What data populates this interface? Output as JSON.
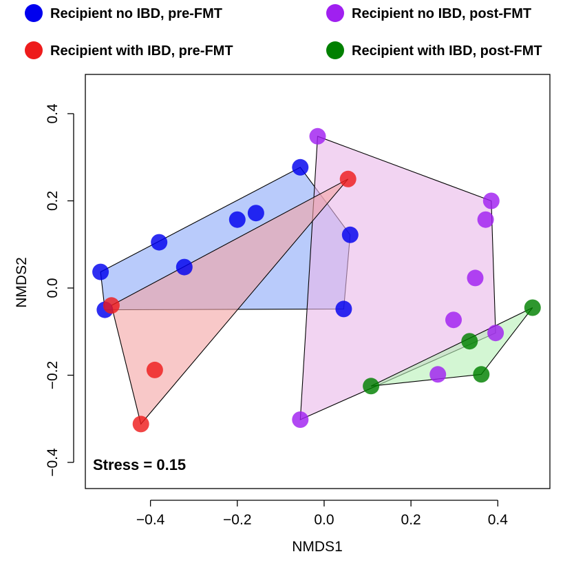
{
  "chart_data": {
    "type": "scatter",
    "xlabel": "NMDS1",
    "ylabel": "NMDS2",
    "xlim": [
      -0.55,
      0.52
    ],
    "ylim": [
      -0.46,
      0.49
    ],
    "x_ticks": [
      -0.4,
      -0.2,
      0.0,
      0.2,
      0.4
    ],
    "x_tick_labels": [
      "−0.4",
      "−0.2",
      "0.0",
      "0.2",
      "0.4"
    ],
    "y_ticks": [
      -0.4,
      -0.2,
      0.0,
      0.2,
      0.4
    ],
    "y_tick_labels": [
      "−0.4",
      "−0.2",
      "0.0",
      "0.2",
      "0.4"
    ],
    "grid": false,
    "legend_position": "top, outside plot, two columns",
    "annotation": "Stress = 0.15",
    "series": [
      {
        "name": "Recipient no IBD, pre-FMT",
        "color": "#0000ee",
        "fill": "#8aa8f8",
        "points": [
          [
            -0.515,
            0.037
          ],
          [
            -0.505,
            -0.05
          ],
          [
            -0.38,
            0.105
          ],
          [
            -0.322,
            0.048
          ],
          [
            -0.2,
            0.157
          ],
          [
            -0.157,
            0.172
          ],
          [
            -0.055,
            0.277
          ],
          [
            0.06,
            0.122
          ],
          [
            0.045,
            -0.048
          ]
        ],
        "hull": [
          [
            -0.515,
            0.037
          ],
          [
            -0.055,
            0.277
          ],
          [
            0.06,
            0.122
          ],
          [
            0.045,
            -0.048
          ],
          [
            -0.505,
            -0.05
          ]
        ]
      },
      {
        "name": "Recipient no IBD, post-FMT",
        "color": "#a020f0",
        "fill": "#e9b8e9",
        "points": [
          [
            -0.015,
            0.348
          ],
          [
            0.385,
            0.2
          ],
          [
            0.372,
            0.157
          ],
          [
            0.348,
            0.023
          ],
          [
            0.298,
            -0.073
          ],
          [
            0.395,
            -0.103
          ],
          [
            0.262,
            -0.198
          ],
          [
            -0.055,
            -0.302
          ]
        ],
        "hull": [
          [
            -0.015,
            0.348
          ],
          [
            0.385,
            0.2
          ],
          [
            0.395,
            -0.103
          ],
          [
            -0.055,
            -0.302
          ]
        ]
      },
      {
        "name": "Recipient with IBD, pre-FMT",
        "color": "#ee1c1c",
        "fill": "#f4a4a4",
        "points": [
          [
            0.055,
            0.25
          ],
          [
            -0.49,
            -0.04
          ],
          [
            -0.39,
            -0.188
          ],
          [
            -0.422,
            -0.312
          ]
        ],
        "hull": [
          [
            0.055,
            0.25
          ],
          [
            -0.49,
            -0.04
          ],
          [
            -0.422,
            -0.312
          ]
        ]
      },
      {
        "name": "Recipient with IBD, post-FMT",
        "color": "#008000",
        "fill": "#b6f0b6",
        "points": [
          [
            0.48,
            -0.045
          ],
          [
            0.335,
            -0.122
          ],
          [
            0.362,
            -0.198
          ],
          [
            0.108,
            -0.225
          ]
        ],
        "hull": [
          [
            0.48,
            -0.045
          ],
          [
            0.362,
            -0.198
          ],
          [
            0.108,
            -0.225
          ]
        ]
      }
    ]
  }
}
